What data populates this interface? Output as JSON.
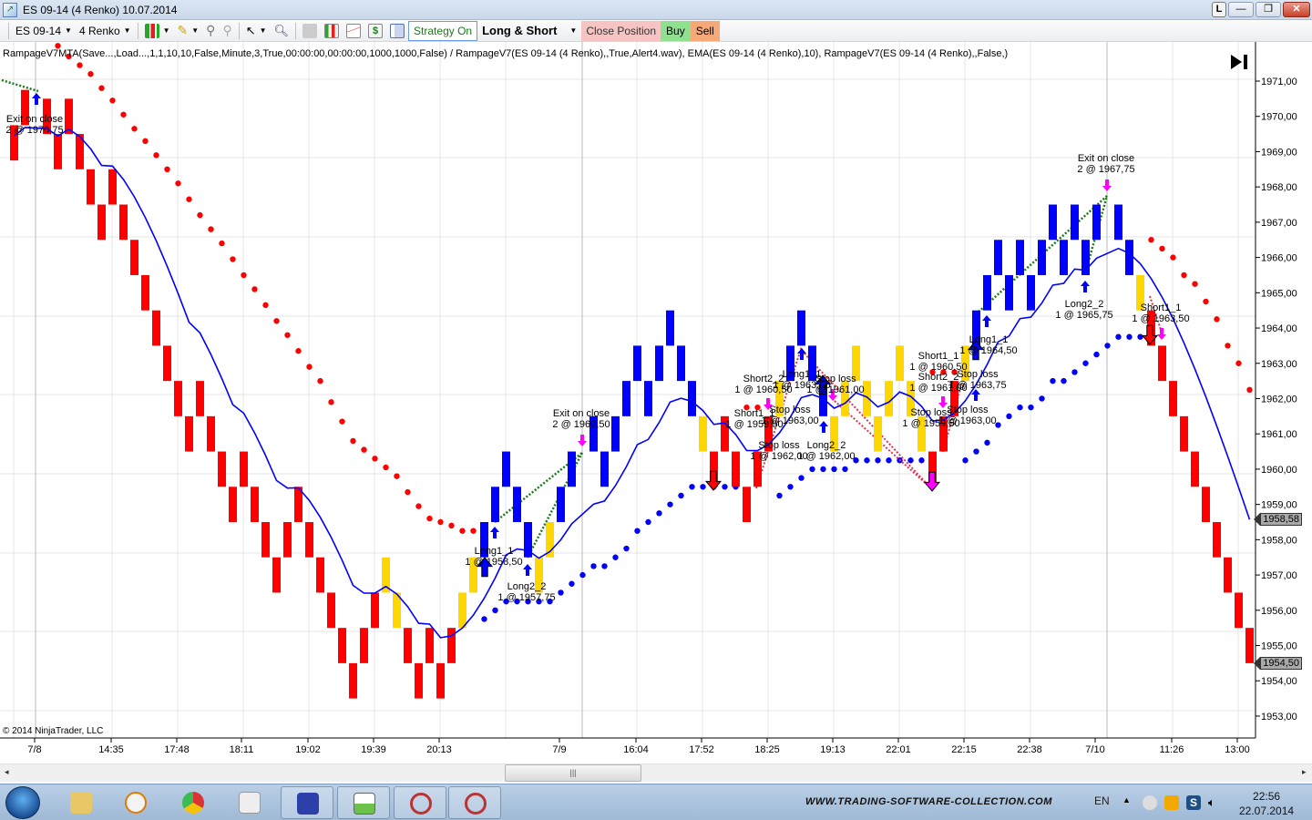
{
  "window": {
    "title": "ES 09-14 (4 Renko)  10.07.2014",
    "controls": [
      "L",
      "—",
      "❐",
      "✕"
    ]
  },
  "toolbar": {
    "instrument": "ES 09-14",
    "bar_type": "4 Renko",
    "strategy_on": "Strategy On",
    "mode": "Long & Short",
    "close_position": "Close Position",
    "buy": "Buy",
    "sell": "Sell"
  },
  "chart": {
    "legend": "RampageV7MTA(Save...,Load...,1,1,10,10,False,Minute,3,True,00:00:00,00:00:00,1000,1000,False) /  RampageV7(ES 09-14 (4 Renko),,True,Alert4.wav), EMA(ES 09-14 (4 Renko),10),  RampageV7(ES 09-14 (4 Renko),,False,)",
    "copyright": "© 2014 NinjaTrader, LLC",
    "price_tags": {
      "ema": "1958,58",
      "last": "1954,50"
    },
    "annotations": [
      [
        "Exit on close",
        "2 @ 1970,75"
      ],
      [
        "Long1_1",
        "1 @ 1958,50"
      ],
      [
        "Long2_2",
        "1 @ 1957,75"
      ],
      [
        "Exit on close",
        "2 @ 1960,50"
      ],
      [
        "Short2_2",
        "1 @ 1960,50"
      ],
      [
        "Long1_1",
        "1 @ 1963,50"
      ],
      [
        "Stop loss",
        "1 @ 1961,00"
      ],
      [
        "Short1_1",
        "1 @ 1959,50"
      ],
      [
        "Stop loss",
        "1 @ 1963,00"
      ],
      [
        "Stop loss",
        "1 @ 1962,00"
      ],
      [
        "Long2_2",
        "1 @ 1962,00"
      ],
      [
        "Short1_1",
        "1 @ 1960,50"
      ],
      [
        "Short2_2",
        "1 @ 1961,00"
      ],
      [
        "Stop loss",
        "1 @ 1963,75"
      ],
      [
        "Stop loss",
        "1 @ 1959,50"
      ],
      [
        "Stop loss",
        "1 @ 1963,00"
      ],
      [
        "Long1_1",
        "1 @ 1964,50"
      ],
      [
        "Long2_2",
        "1 @ 1965,75"
      ],
      [
        "Exit on close",
        "2 @ 1967,75"
      ],
      [
        "Short1_1",
        "1 @ 1963,50"
      ]
    ]
  },
  "chart_data": {
    "type": "renko",
    "brick_size": 1.0,
    "colors": {
      "R": "#ff0000",
      "B": "#0000ff",
      "Y": "#ffd700",
      "ema": "#0000ff",
      "support_dots": "#0000ff",
      "resistance_dots": "#ff0000"
    },
    "y_ticks": [
      "1971,00",
      "1970,00",
      "1969,00",
      "1968,00",
      "1967,00",
      "1966,00",
      "1965,00",
      "1964,00",
      "1963,00",
      "1962,00",
      "1961,00",
      "1960,00",
      "1959,00",
      "1958,00",
      "1957,00",
      "1956,00",
      "1955,00",
      "1954,00",
      "1953,00"
    ],
    "ylim": [
      1952.6,
      1972.2
    ],
    "x_ticks": [
      "7/8",
      "14:35",
      "17:48",
      "18:11",
      "19:02",
      "19:39",
      "20:13",
      "7/9",
      "16:04",
      "17:52",
      "18:25",
      "19:13",
      "22:01",
      "22:15",
      "22:38",
      "7/10",
      "11:26",
      "13:00"
    ],
    "ema_period": 10,
    "bricks": [
      [
        1969.75,
        "R"
      ],
      [
        1970.75,
        "R"
      ],
      null,
      [
        1970.5,
        "R"
      ],
      [
        1969.5,
        "R"
      ],
      [
        1970.5,
        "R"
      ],
      [
        1969.5,
        "R"
      ],
      [
        1968.5,
        "R"
      ],
      [
        1967.5,
        "R"
      ],
      [
        1968.5,
        "R"
      ],
      [
        1967.5,
        "R"
      ],
      [
        1966.5,
        "R"
      ],
      [
        1965.5,
        "R"
      ],
      [
        1964.5,
        "R"
      ],
      [
        1963.5,
        "R"
      ],
      [
        1962.5,
        "R"
      ],
      [
        1961.5,
        "R"
      ],
      [
        1962.5,
        "R"
      ],
      [
        1961.5,
        "R"
      ],
      [
        1960.5,
        "R"
      ],
      [
        1959.5,
        "R"
      ],
      [
        1960.5,
        "R"
      ],
      [
        1959.5,
        "R"
      ],
      [
        1958.5,
        "R"
      ],
      [
        1957.5,
        "R"
      ],
      [
        1958.5,
        "R"
      ],
      [
        1959.5,
        "R"
      ],
      [
        1958.5,
        "R"
      ],
      [
        1957.5,
        "R"
      ],
      [
        1956.5,
        "R"
      ],
      [
        1955.5,
        "R"
      ],
      [
        1954.5,
        "R"
      ],
      [
        1955.5,
        "R"
      ],
      [
        1956.5,
        "R"
      ],
      [
        1957.5,
        "Y"
      ],
      [
        1956.5,
        "Y"
      ],
      [
        1955.5,
        "R"
      ],
      [
        1954.5,
        "R"
      ],
      [
        1955.5,
        "R"
      ],
      [
        1954.5,
        "R"
      ],
      [
        1955.5,
        "R"
      ],
      [
        1956.5,
        "Y"
      ],
      [
        1957.5,
        "Y"
      ],
      [
        1958.5,
        "B"
      ],
      [
        1959.5,
        "B"
      ],
      [
        1960.5,
        "B"
      ],
      [
        1959.5,
        "B"
      ],
      [
        1958.5,
        "B"
      ],
      [
        1957.5,
        "Y"
      ],
      [
        1958.5,
        "Y"
      ],
      [
        1959.5,
        "B"
      ],
      [
        1960.5,
        "B"
      ],
      null,
      [
        1961.5,
        "B"
      ],
      [
        1960.5,
        "B"
      ],
      [
        1961.5,
        "B"
      ],
      [
        1962.5,
        "B"
      ],
      [
        1963.5,
        "B"
      ],
      [
        1962.5,
        "B"
      ],
      [
        1963.5,
        "B"
      ],
      [
        1964.5,
        "B"
      ],
      [
        1963.5,
        "B"
      ],
      [
        1962.5,
        "B"
      ],
      [
        1961.5,
        "Y"
      ],
      [
        1960.5,
        "R"
      ],
      [
        1961.5,
        "R"
      ],
      [
        1960.5,
        "R"
      ],
      [
        1959.5,
        "R"
      ],
      [
        1960.5,
        "R"
      ],
      [
        1961.5,
        "R"
      ],
      [
        1962.5,
        "Y"
      ],
      [
        1963.5,
        "B"
      ],
      [
        1964.5,
        "B"
      ],
      [
        1963.5,
        "B"
      ],
      [
        1962.5,
        "B"
      ],
      [
        1961.5,
        "Y"
      ],
      [
        1962.5,
        "Y"
      ],
      [
        1963.5,
        "Y"
      ],
      [
        1962.5,
        "Y"
      ],
      [
        1961.5,
        "Y"
      ],
      [
        1962.5,
        "Y"
      ],
      [
        1963.5,
        "Y"
      ],
      [
        1962.5,
        "Y"
      ],
      [
        1961.5,
        "Y"
      ],
      [
        1960.5,
        "R"
      ],
      [
        1961.5,
        "R"
      ],
      [
        1962.5,
        "R"
      ],
      [
        1963.5,
        "Y"
      ],
      [
        1964.5,
        "B"
      ],
      [
        1965.5,
        "B"
      ],
      [
        1966.5,
        "B"
      ],
      [
        1965.5,
        "B"
      ],
      [
        1966.5,
        "B"
      ],
      [
        1965.5,
        "B"
      ],
      [
        1966.5,
        "B"
      ],
      [
        1967.5,
        "B"
      ],
      [
        1966.5,
        "B"
      ],
      [
        1967.5,
        "B"
      ],
      [
        1966.5,
        "B"
      ],
      [
        1967.5,
        "B"
      ],
      null,
      [
        1967.5,
        "B"
      ],
      [
        1966.5,
        "B"
      ],
      [
        1965.5,
        "Y"
      ],
      [
        1964.5,
        "R"
      ],
      [
        1963.5,
        "R"
      ],
      [
        1962.5,
        "R"
      ],
      [
        1961.5,
        "R"
      ],
      [
        1960.5,
        "R"
      ],
      [
        1959.5,
        "R"
      ],
      [
        1958.5,
        "R"
      ],
      [
        1957.5,
        "R"
      ],
      [
        1956.5,
        "R"
      ],
      [
        1955.5,
        "R"
      ]
    ],
    "resistance_dots": [
      {
        "start": 4,
        "values": [
          1972.0,
          1971.7,
          1971.45,
          1971.2,
          1970.8,
          1970.45,
          1970.05,
          1969.65,
          1969.3,
          1968.9,
          1968.5,
          1968.1,
          1967.65,
          1967.2,
          1966.8,
          1966.4,
          1965.95,
          1965.5,
          1965.1,
          1964.65,
          1964.2,
          1963.8,
          1963.35,
          1962.9,
          1962.5,
          1961.9,
          1961.35,
          1960.8,
          1960.55,
          1960.3,
          1960.05,
          1959.8,
          1959.35,
          1958.95,
          1958.6,
          1958.5,
          1958.4,
          1958.25,
          1958.25
        ]
      },
      {
        "start": 67,
        "values": [
          1961.75,
          1961.75
        ]
      },
      {
        "start": 84,
        "values": [
          1962.75,
          1962.75,
          1962.75
        ]
      },
      {
        "start": 104,
        "values": [
          1966.5,
          1966.25,
          1966.0,
          1965.5,
          1965.25,
          1964.75,
          1964.25,
          1963.5,
          1963.0,
          1962.25
        ]
      }
    ],
    "support_dots": [
      {
        "start": 43,
        "values": [
          1955.75,
          1956.0,
          1956.25,
          1956.25,
          1956.25,
          1956.25,
          1956.25,
          1956.5,
          1956.75,
          1957.0,
          1957.25,
          1957.25,
          1957.5,
          1957.75,
          1958.25,
          1958.5,
          1958.75,
          1959.0,
          1959.25,
          1959.5,
          1959.5,
          1959.5,
          1959.5,
          1959.5
        ]
      },
      {
        "start": 70,
        "values": [
          1959.25,
          1959.5,
          1959.75,
          1960.0,
          1960.0,
          1960.0,
          1960.0,
          1960.25,
          1960.25,
          1960.25,
          1960.25,
          1960.25,
          1960.25,
          1960.25
        ]
      },
      {
        "start": 87,
        "values": [
          1960.25,
          1960.5,
          1960.75,
          1961.25,
          1961.5,
          1961.75,
          1961.75,
          1962.0,
          1962.5,
          1962.5,
          1962.75,
          1963.0,
          1963.25,
          1963.5,
          1963.75,
          1963.75,
          1963.75
        ]
      }
    ]
  },
  "taskbar": {
    "website": "WWW.TRADING-SOFTWARE-COLLECTION.COM",
    "language": "EN",
    "time": "22:56",
    "date": "22.07.2014"
  }
}
